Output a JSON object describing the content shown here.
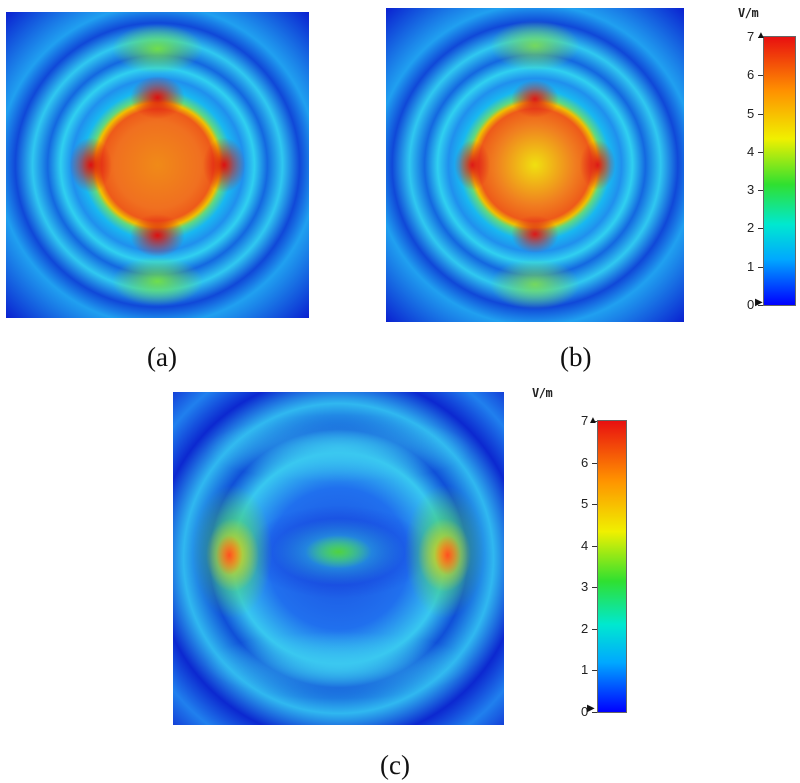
{
  "captions": [
    "(a)",
    "(b)",
    "(c)"
  ],
  "colorbar": {
    "unit": "V/m",
    "ticks": [
      "0",
      "1",
      "2",
      "3",
      "4",
      "5",
      "6",
      "7"
    ],
    "min": 0,
    "max": 7,
    "colors": [
      "#0000ff",
      "#00a8ff",
      "#00e8d0",
      "#30e030",
      "#f0f000",
      "#ff9000",
      "#e81010"
    ]
  }
}
